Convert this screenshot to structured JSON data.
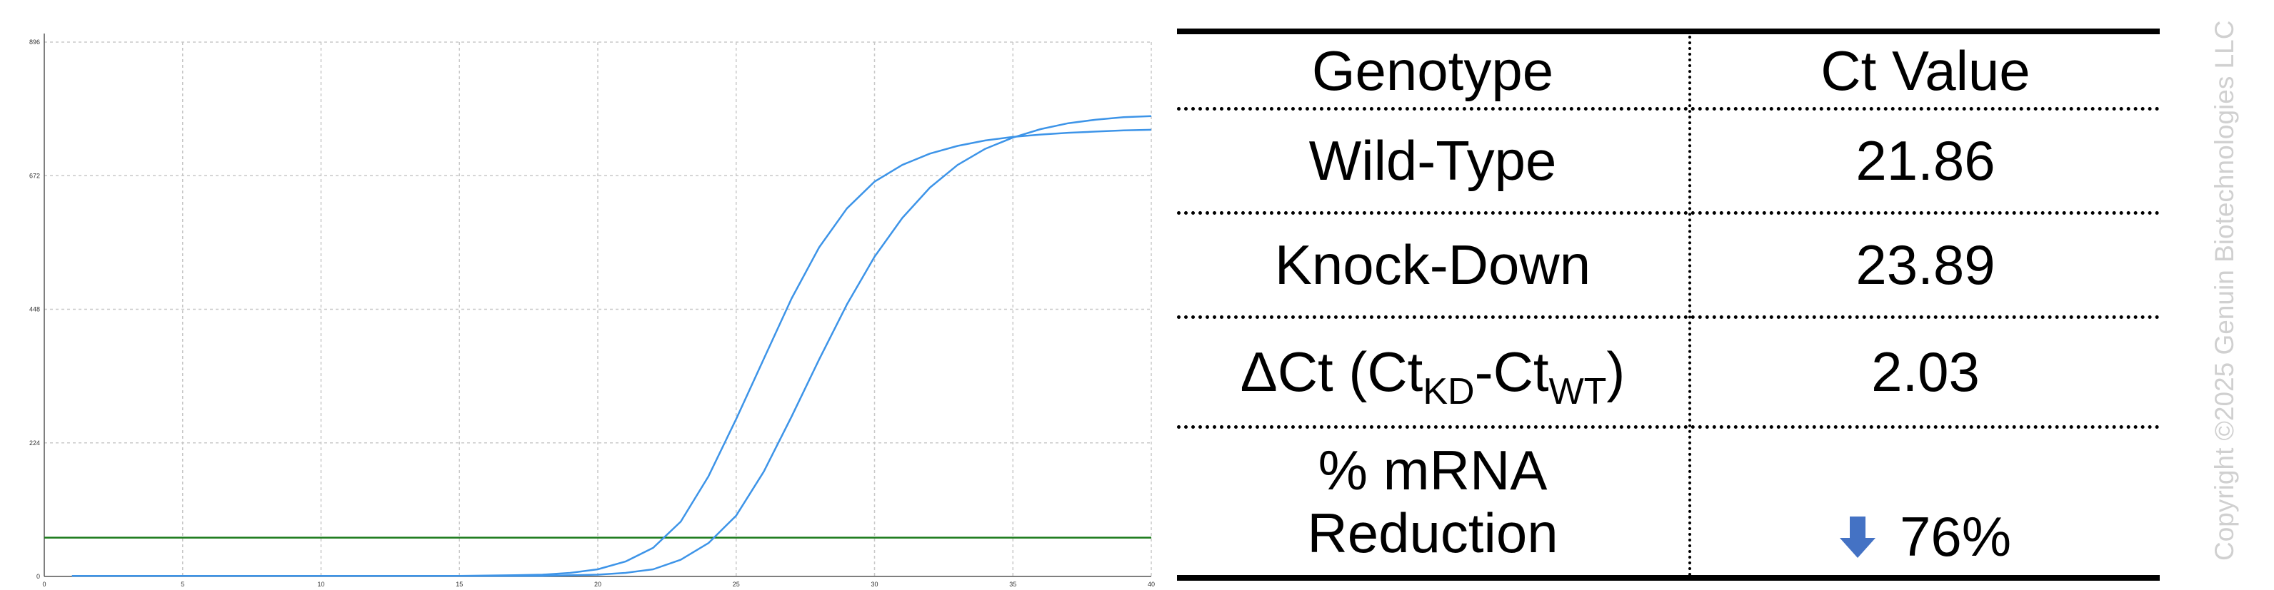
{
  "chart_data": {
    "type": "line",
    "xlim": [
      0,
      40
    ],
    "ylim": [
      0,
      896
    ],
    "x_ticks": [
      0,
      5,
      10,
      15,
      20,
      25,
      30,
      35,
      40
    ],
    "y_ticks": [
      0,
      224,
      448,
      672,
      896
    ],
    "grid": true,
    "threshold": {
      "value": 65,
      "color": "#1a7a1a"
    },
    "series": [
      {
        "color": "#3d94e8",
        "x": [
          1,
          5,
          10,
          15,
          17,
          18,
          19,
          20,
          21,
          22,
          23,
          24,
          25,
          26,
          27,
          28,
          29,
          30,
          31,
          32,
          33,
          34,
          35,
          36,
          37,
          38,
          39,
          40
        ],
        "values": [
          1,
          1,
          1,
          1,
          2,
          3,
          6,
          12,
          25,
          48,
          92,
          168,
          264,
          365,
          466,
          552,
          617,
          662,
          690,
          709,
          722,
          731,
          737,
          741,
          744,
          746,
          748,
          749
        ]
      },
      {
        "color": "#3d94e8",
        "x": [
          1,
          5,
          10,
          15,
          18,
          20,
          21,
          22,
          23,
          24,
          25,
          26,
          27,
          28,
          29,
          30,
          31,
          32,
          33,
          34,
          35,
          36,
          37,
          38,
          39,
          40
        ],
        "values": [
          1,
          1,
          1,
          1,
          1,
          3,
          6,
          12,
          28,
          56,
          102,
          176,
          268,
          364,
          456,
          536,
          601,
          652,
          690,
          717,
          736,
          750,
          760,
          766,
          770,
          772
        ]
      }
    ]
  },
  "table": {
    "headers": [
      "Genotype",
      "Ct Value"
    ],
    "rows": [
      {
        "label": "Wild-Type",
        "value": "21.86"
      },
      {
        "label": "Knock-Down",
        "value": "23.89"
      },
      {
        "label_main": "ΔCt (Ct",
        "label_sub1": "KD",
        "label_mid": "-Ct",
        "label_sub2": "WT",
        "label_end": ")",
        "value": "2.03"
      },
      {
        "label_line1": "% mRNA",
        "label_line2": "Reduction",
        "value": "76%",
        "icon": "down-arrow-icon",
        "icon_color": "#4472c4"
      }
    ]
  },
  "copyright": "Copyright ©2025 Genuin Biotechnologies LLC"
}
